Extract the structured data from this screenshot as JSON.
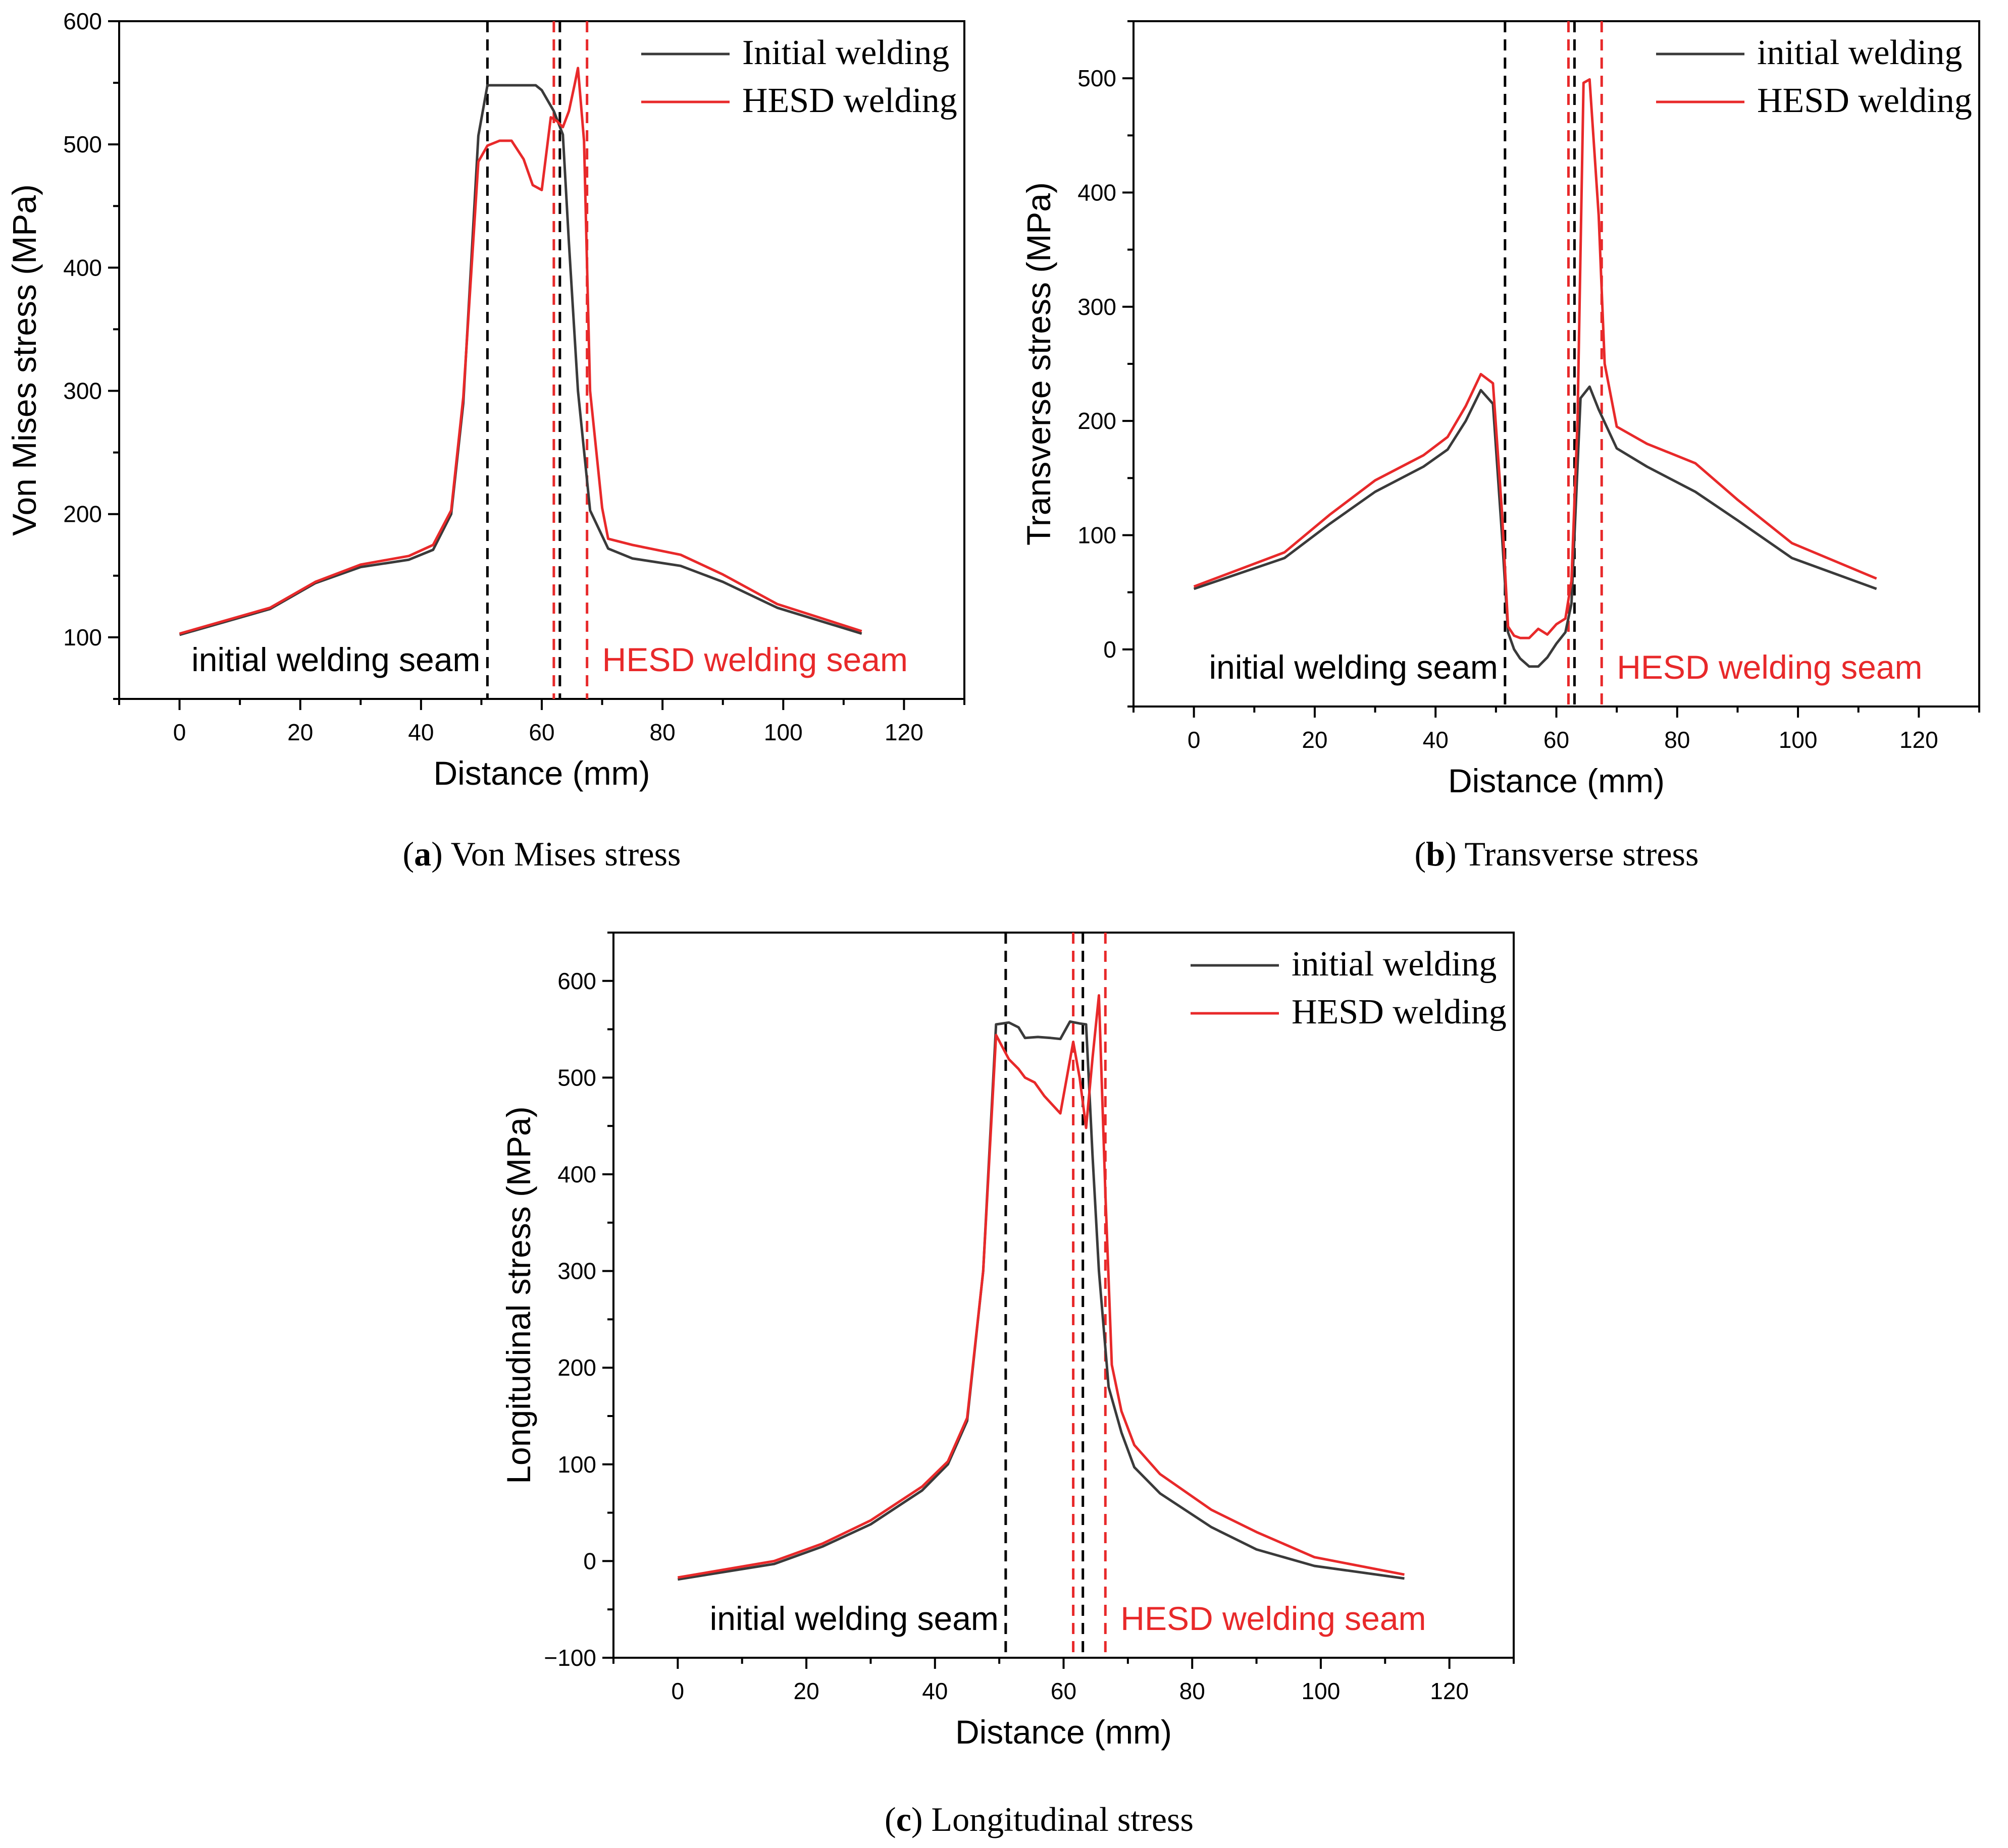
{
  "colors": {
    "initial": "#3a3a3a",
    "hesd": "#e8292a"
  },
  "chart_data": [
    {
      "id": "a",
      "type": "line",
      "caption_letter": "a",
      "caption_text": "Von Mises stress",
      "xlabel": "Distance (mm)",
      "ylabel": "Von Mises stress (MPa)",
      "xlim": [
        -10,
        130
      ],
      "ylim": [
        50,
        600
      ],
      "xticks": [
        0,
        20,
        40,
        60,
        80,
        100,
        120
      ],
      "yticks": [
        100,
        200,
        300,
        400,
        500,
        600
      ],
      "legend_position": "top-right",
      "seam_labels": {
        "initial": "initial welding seam",
        "hesd": "HESD welding seam"
      },
      "vlines": [
        {
          "x": 51,
          "color": "initial"
        },
        {
          "x": 62,
          "color": "hesd"
        },
        {
          "x": 63,
          "color": "initial"
        },
        {
          "x": 67.5,
          "color": "hesd"
        }
      ],
      "series": [
        {
          "name": "Initial welding",
          "color": "initial",
          "points": [
            [
              0,
              102
            ],
            [
              15,
              123
            ],
            [
              22.5,
              144
            ],
            [
              30,
              157
            ],
            [
              38,
              163
            ],
            [
              42,
              171
            ],
            [
              45,
              200
            ],
            [
              47,
              290
            ],
            [
              49.5,
              507
            ],
            [
              51,
              548
            ],
            [
              53,
              548
            ],
            [
              55,
              548
            ],
            [
              57,
              548
            ],
            [
              59,
              548
            ],
            [
              60,
              544
            ],
            [
              62,
              527
            ],
            [
              63.5,
              508
            ],
            [
              64.5,
              420
            ],
            [
              66,
              300
            ],
            [
              68,
              203
            ],
            [
              71,
              172
            ],
            [
              75,
              164
            ],
            [
              83,
              158
            ],
            [
              90,
              145
            ],
            [
              99,
              124
            ],
            [
              113,
              103
            ]
          ]
        },
        {
          "name": "HESD welding",
          "color": "hesd",
          "points": [
            [
              0,
              103
            ],
            [
              15,
              124
            ],
            [
              22.5,
              145
            ],
            [
              30,
              159
            ],
            [
              38,
              166
            ],
            [
              42,
              175
            ],
            [
              45,
              203
            ],
            [
              47,
              295
            ],
            [
              49.5,
              486
            ],
            [
              51,
              499
            ],
            [
              53,
              503
            ],
            [
              55,
              503
            ],
            [
              57,
              488
            ],
            [
              58.5,
              467
            ],
            [
              60,
              463
            ],
            [
              61.5,
              522
            ],
            [
              62.5,
              519
            ],
            [
              63.5,
              514
            ],
            [
              64.5,
              527
            ],
            [
              65.5,
              550
            ],
            [
              66,
              562
            ],
            [
              67,
              503
            ],
            [
              68,
              300
            ],
            [
              70,
              205
            ],
            [
              71,
              180
            ],
            [
              75,
              175
            ],
            [
              83,
              167
            ],
            [
              90,
              151
            ],
            [
              99,
              127
            ],
            [
              113,
              105
            ]
          ]
        }
      ]
    },
    {
      "id": "b",
      "type": "line",
      "caption_letter": "b",
      "caption_text": "Transverse stress",
      "xlabel": "Distance (mm)",
      "ylabel": "Transverse stress (MPa)",
      "xlim": [
        -10,
        130
      ],
      "ylim": [
        -50,
        550
      ],
      "xticks": [
        0,
        20,
        40,
        60,
        80,
        100,
        120
      ],
      "yticks": [
        0,
        100,
        200,
        300,
        400,
        500
      ],
      "legend_position": "top-right",
      "seam_labels": {
        "initial": "initial welding seam",
        "hesd": "HESD welding seam"
      },
      "vlines": [
        {
          "x": 51.5,
          "color": "initial"
        },
        {
          "x": 62,
          "color": "hesd"
        },
        {
          "x": 63,
          "color": "initial"
        },
        {
          "x": 67.5,
          "color": "hesd"
        }
      ],
      "series": [
        {
          "name": "initial welding",
          "color": "initial",
          "points": [
            [
              0,
              53
            ],
            [
              15,
              80
            ],
            [
              22.5,
              110
            ],
            [
              30,
              138
            ],
            [
              38,
              160
            ],
            [
              42,
              175
            ],
            [
              45,
              200
            ],
            [
              47.5,
              227
            ],
            [
              49.5,
              215
            ],
            [
              51,
              100
            ],
            [
              52,
              15
            ],
            [
              53,
              0
            ],
            [
              54,
              -8
            ],
            [
              55.5,
              -15
            ],
            [
              57,
              -15
            ],
            [
              58.5,
              -7
            ],
            [
              60,
              5
            ],
            [
              61.5,
              15
            ],
            [
              62.5,
              40
            ],
            [
              64,
              220
            ],
            [
              65.5,
              230
            ],
            [
              67,
              210
            ],
            [
              70,
              176
            ],
            [
              75,
              160
            ],
            [
              83,
              138
            ],
            [
              90,
              113
            ],
            [
              99,
              80
            ],
            [
              113,
              53
            ]
          ]
        },
        {
          "name": "HESD welding",
          "color": "hesd",
          "points": [
            [
              0,
              55
            ],
            [
              15,
              85
            ],
            [
              22.5,
              118
            ],
            [
              30,
              148
            ],
            [
              38,
              170
            ],
            [
              42,
              186
            ],
            [
              45,
              213
            ],
            [
              47.5,
              241
            ],
            [
              49.5,
              233
            ],
            [
              51,
              120
            ],
            [
              52,
              20
            ],
            [
              53,
              12
            ],
            [
              54,
              10
            ],
            [
              55.5,
              10
            ],
            [
              57,
              18
            ],
            [
              58.5,
              13
            ],
            [
              60,
              22
            ],
            [
              61.5,
              27
            ],
            [
              62.5,
              60
            ],
            [
              63.5,
              200
            ],
            [
              64.5,
              496
            ],
            [
              65.5,
              499
            ],
            [
              67,
              380
            ],
            [
              68,
              250
            ],
            [
              70,
              195
            ],
            [
              75,
              180
            ],
            [
              83,
              163
            ],
            [
              90,
              131
            ],
            [
              99,
              93
            ],
            [
              113,
              62
            ]
          ]
        }
      ]
    },
    {
      "id": "c",
      "type": "line",
      "caption_letter": "c",
      "caption_text": "Longitudinal stress",
      "xlabel": "Distance (mm)",
      "ylabel": "Longitudinal stress (MPa)",
      "xlim": [
        -10,
        130
      ],
      "ylim": [
        -100,
        650
      ],
      "xticks": [
        0,
        20,
        40,
        60,
        80,
        100,
        120
      ],
      "yticks": [
        -100,
        0,
        100,
        200,
        300,
        400,
        500,
        600
      ],
      "legend_position": "top-right",
      "seam_labels": {
        "initial": "initial welding seam",
        "hesd": "HESD welding seam"
      },
      "vlines": [
        {
          "x": 51,
          "color": "initial"
        },
        {
          "x": 61.5,
          "color": "hesd"
        },
        {
          "x": 63,
          "color": "initial"
        },
        {
          "x": 66.5,
          "color": "hesd"
        }
      ],
      "series": [
        {
          "name": "initial welding",
          "color": "initial",
          "points": [
            [
              0,
              -19
            ],
            [
              15,
              -3
            ],
            [
              22.5,
              15
            ],
            [
              30,
              38
            ],
            [
              38,
              73
            ],
            [
              42,
              100
            ],
            [
              45,
              145
            ],
            [
              47.5,
              300
            ],
            [
              49.5,
              555
            ],
            [
              51.5,
              557
            ],
            [
              53,
              552
            ],
            [
              54,
              541
            ],
            [
              56,
              542
            ],
            [
              58,
              541
            ],
            [
              59.5,
              540
            ],
            [
              61,
              558
            ],
            [
              62.5,
              556
            ],
            [
              63.5,
              555
            ],
            [
              64.5,
              420
            ],
            [
              65.5,
              300
            ],
            [
              67,
              180
            ],
            [
              69,
              133
            ],
            [
              71,
              97
            ],
            [
              75,
              70
            ],
            [
              83,
              35
            ],
            [
              90,
              12
            ],
            [
              99,
              -5
            ],
            [
              113,
              -18
            ]
          ]
        },
        {
          "name": "HESD welding",
          "color": "hesd",
          "points": [
            [
              0,
              -17
            ],
            [
              15,
              0
            ],
            [
              22.5,
              18
            ],
            [
              30,
              42
            ],
            [
              38,
              77
            ],
            [
              42,
              103
            ],
            [
              45,
              148
            ],
            [
              47.5,
              300
            ],
            [
              49.5,
              544
            ],
            [
              51.5,
              519
            ],
            [
              53,
              509
            ],
            [
              54,
              500
            ],
            [
              55.5,
              495
            ],
            [
              57,
              481
            ],
            [
              59.5,
              463
            ],
            [
              60.5,
              500
            ],
            [
              61.5,
              537
            ],
            [
              62.5,
              500
            ],
            [
              63.5,
              448
            ],
            [
              64.5,
              520
            ],
            [
              65.5,
              585
            ],
            [
              66.5,
              380
            ],
            [
              67.5,
              203
            ],
            [
              69,
              155
            ],
            [
              71,
              120
            ],
            [
              75,
              90
            ],
            [
              83,
              53
            ],
            [
              90,
              30
            ],
            [
              99,
              4
            ],
            [
              113,
              -14
            ]
          ]
        }
      ]
    }
  ]
}
